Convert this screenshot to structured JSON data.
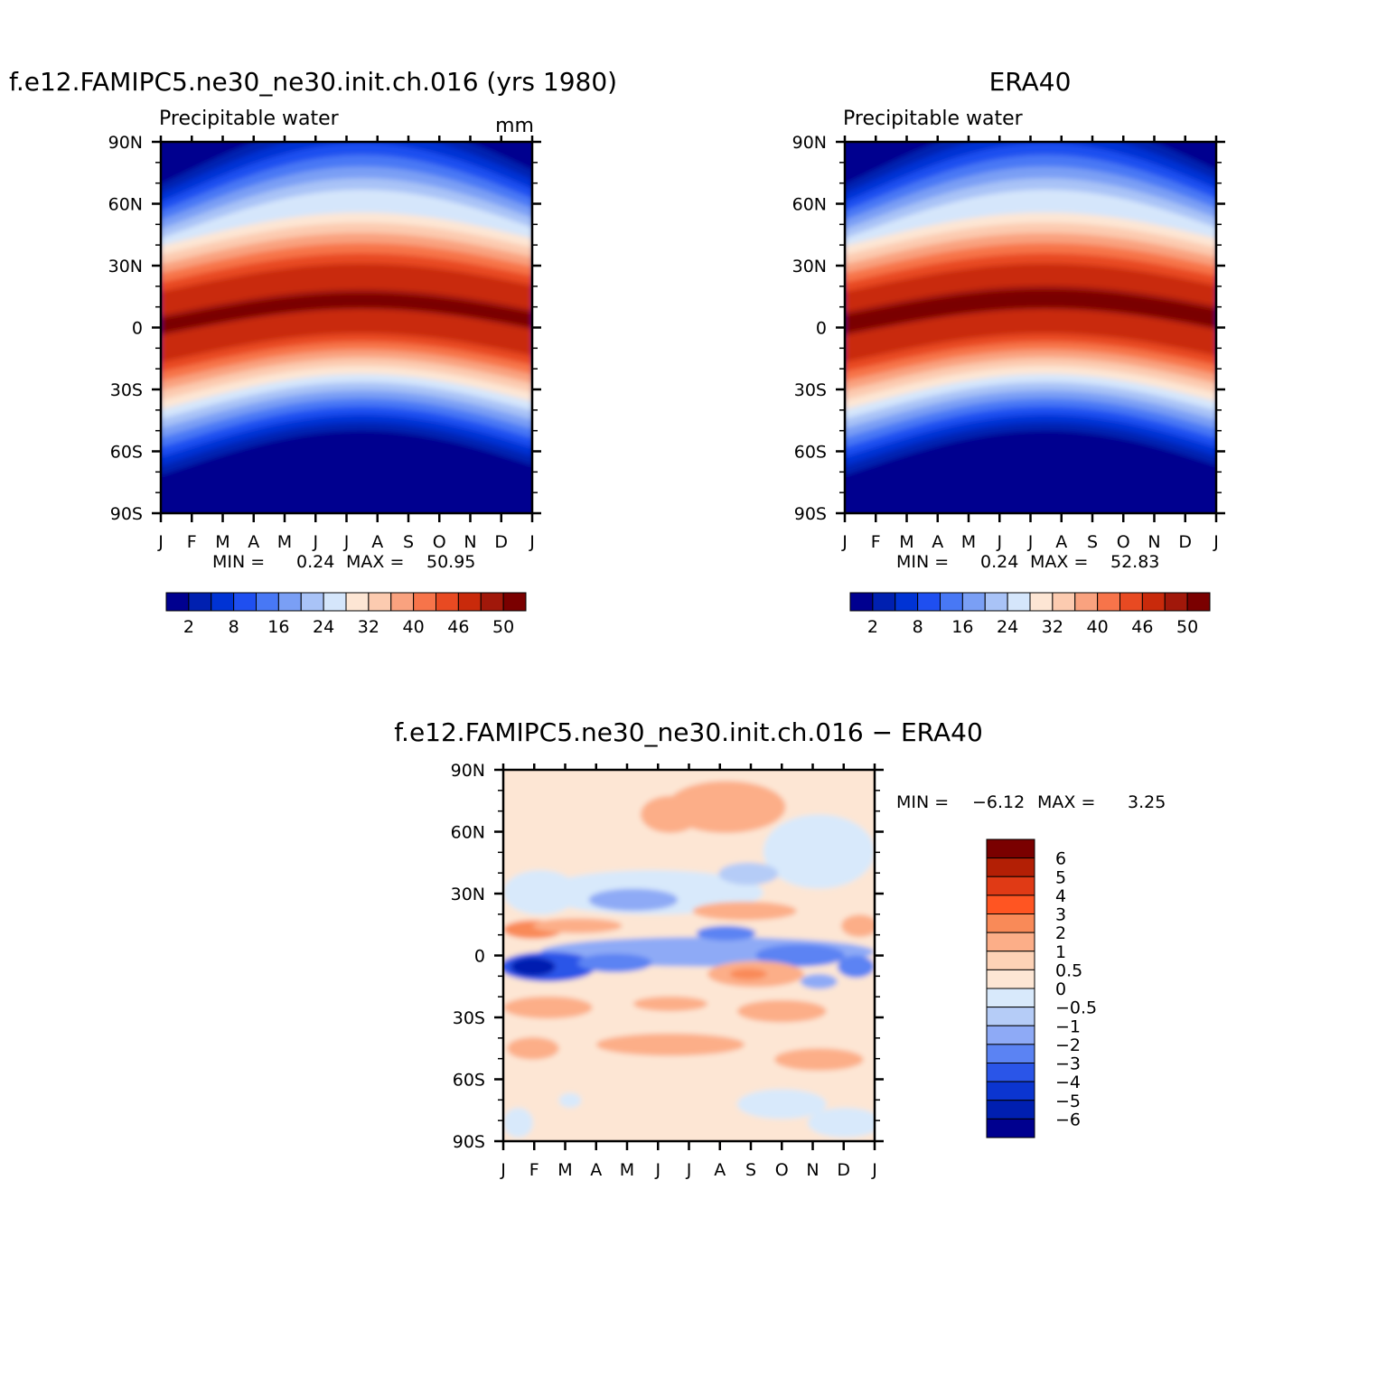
{
  "months": [
    "J",
    "F",
    "M",
    "A",
    "M",
    "J",
    "J",
    "A",
    "S",
    "O",
    "N",
    "D",
    "J"
  ],
  "lat_labels": [
    "90N",
    "60N",
    "30N",
    "0",
    "30S",
    "60S",
    "90S"
  ],
  "min_label": "MIN =",
  "max_label": "MAX =",
  "abs_colors": [
    "#00008f",
    "#0020b0",
    "#0033d4",
    "#1f4ff0",
    "#4878f5",
    "#7a9ff5",
    "#a9c3f7",
    "#d5e6fb",
    "#fde6d4",
    "#fccbb0",
    "#f9a27f",
    "#f7744a",
    "#e84a22",
    "#c92a0b",
    "#a1180a",
    "#7a0000"
  ],
  "abs_levels": [
    "2",
    "8",
    "16",
    "24",
    "32",
    "40",
    "46",
    "50"
  ],
  "diff_colors": [
    "#7a0000",
    "#b31f05",
    "#e03a15",
    "#ff5522",
    "#f98a58",
    "#fcae88",
    "#fdd2b6",
    "#fde6d4",
    "#d8e9fb",
    "#b5ccf7",
    "#8eaaf6",
    "#5b83f3",
    "#2a55e8",
    "#0b35d0",
    "#001fb0",
    "#00008f"
  ],
  "diff_levels": [
    "6",
    "5",
    "4",
    "3",
    "2",
    "1",
    "0.5",
    "0",
    "−0.5",
    "−1",
    "−2",
    "−3",
    "−4",
    "−5",
    "−6"
  ],
  "chart_data": [
    {
      "type": "heatmap",
      "title": "f.e12.FAMIPC5.ne30_ne30.init.ch.016 (yrs 1980)",
      "subtitle": "Precipitable water",
      "units": "mm",
      "x": [
        "J",
        "F",
        "M",
        "A",
        "M",
        "J",
        "J",
        "A",
        "S",
        "O",
        "N",
        "D",
        "J"
      ],
      "y": [
        "90N",
        "60N",
        "30N",
        "0",
        "30S",
        "60S",
        "90S"
      ],
      "levels": [
        2,
        8,
        16,
        24,
        32,
        40,
        46,
        50
      ],
      "min": "0.24",
      "max": "50.95"
    },
    {
      "type": "heatmap",
      "title": "ERA40",
      "subtitle": "Precipitable water",
      "x": [
        "J",
        "F",
        "M",
        "A",
        "M",
        "J",
        "J",
        "A",
        "S",
        "O",
        "N",
        "D",
        "J"
      ],
      "y": [
        "90N",
        "60N",
        "30N",
        "0",
        "30S",
        "60S",
        "90S"
      ],
      "levels": [
        2,
        8,
        16,
        24,
        32,
        40,
        46,
        50
      ],
      "min": "0.24",
      "max": "52.83"
    },
    {
      "type": "heatmap",
      "title": "f.e12.FAMIPC5.ne30_ne30.init.ch.016 − ERA40",
      "x": [
        "J",
        "F",
        "M",
        "A",
        "M",
        "J",
        "J",
        "A",
        "S",
        "O",
        "N",
        "D",
        "J"
      ],
      "y": [
        "90N",
        "60N",
        "30N",
        "0",
        "30S",
        "60S",
        "90S"
      ],
      "levels": [
        6,
        5,
        4,
        3,
        2,
        1,
        0.5,
        0,
        -0.5,
        -1,
        -2,
        -3,
        -4,
        -5,
        -6
      ],
      "min": "−6.12",
      "max": "3.25"
    }
  ]
}
